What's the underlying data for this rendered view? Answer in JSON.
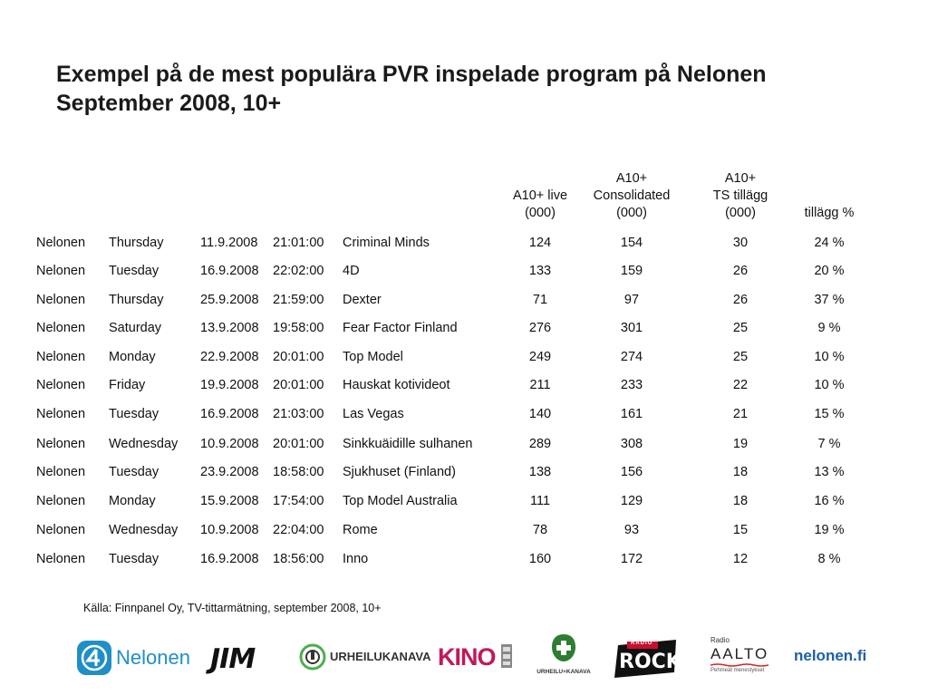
{
  "title": {
    "line1": "Exempel på de mest populära PVR inspelade program på Nelonen",
    "line2": "September 2008, 10+"
  },
  "headers": [
    {
      "lines": [
        "A10+ live",
        "(000)"
      ]
    },
    {
      "lines": [
        "A10+",
        "Consolidated",
        "(000)"
      ]
    },
    {
      "lines": [
        "A10+",
        "TS tillägg",
        "(000)"
      ]
    },
    {
      "lines": [
        "tillägg %"
      ]
    }
  ],
  "rows": [
    {
      "channel": "Nelonen",
      "day": "Thursday",
      "date": "11.9.2008",
      "time": "21:01:00",
      "program": "Criminal Minds",
      "live": "124",
      "consolidated": "154",
      "ts": "30",
      "pct": "24 %"
    },
    {
      "channel": "Nelonen",
      "day": "Tuesday",
      "date": "16.9.2008",
      "time": "22:02:00",
      "program": "4D",
      "live": "133",
      "consolidated": "159",
      "ts": "26",
      "pct": "20 %"
    },
    {
      "channel": "Nelonen",
      "day": "Thursday",
      "date": "25.9.2008",
      "time": "21:59:00",
      "program": "Dexter",
      "live": "71",
      "consolidated": "97",
      "ts": "26",
      "pct": "37 %"
    },
    {
      "channel": "Nelonen",
      "day": "Saturday",
      "date": "13.9.2008",
      "time": "19:58:00",
      "program": "Fear Factor Finland",
      "live": "276",
      "consolidated": "301",
      "ts": "25",
      "pct": "9 %"
    },
    {
      "channel": "Nelonen",
      "day": "Monday",
      "date": "22.9.2008",
      "time": "20:01:00",
      "program": "Top Model",
      "live": "249",
      "consolidated": "274",
      "ts": "25",
      "pct": "10 %"
    },
    {
      "channel": "Nelonen",
      "day": "Friday",
      "date": "19.9.2008",
      "time": "20:01:00",
      "program": "Hauskat kotivideot",
      "live": "211",
      "consolidated": "233",
      "ts": "22",
      "pct": "10 %"
    },
    {
      "channel": "Nelonen",
      "day": "Tuesday",
      "date": "16.9.2008",
      "time": "21:03:00",
      "program": "Las Vegas",
      "live": "140",
      "consolidated": "161",
      "ts": "21",
      "pct": "15 %"
    },
    {
      "channel": "Nelonen",
      "day": "Wednesday",
      "date": "10.9.2008",
      "time": "20:01:00",
      "program": "Sinkkuäidille sulhanen",
      "live": "289",
      "consolidated": "308",
      "ts": "19",
      "pct": "7 %"
    },
    {
      "channel": "Nelonen",
      "day": "Tuesday",
      "date": "23.9.2008",
      "time": "18:58:00",
      "program": "Sjukhuset (Finland)",
      "live": "138",
      "consolidated": "156",
      "ts": "18",
      "pct": "13 %"
    },
    {
      "channel": "Nelonen",
      "day": "Monday",
      "date": "15.9.2008",
      "time": "17:54:00",
      "program": "Top Model Australia",
      "live": "111",
      "consolidated": "129",
      "ts": "18",
      "pct": "16 %"
    },
    {
      "channel": "Nelonen",
      "day": "Wednesday",
      "date": "10.9.2008",
      "time": "22:04:00",
      "program": "Rome",
      "live": "78",
      "consolidated": "93",
      "ts": "15",
      "pct": "19 %"
    },
    {
      "channel": "Nelonen",
      "day": "Tuesday",
      "date": "16.9.2008",
      "time": "18:56:00",
      "program": "Inno",
      "live": "160",
      "consolidated": "172",
      "ts": "12",
      "pct": "8 %"
    }
  ],
  "source": "Källa: Finnpanel Oy, TV-tittarmätning, september 2008, 10+",
  "logos": {
    "nelonen": "Nelonen",
    "jim": "JIM",
    "urheilukanava": "URHEILUKANAVA",
    "kino": "KINO",
    "urheilu_plus": "URHEILU+KANAVA",
    "rock": "ROCK",
    "rock_top": "RADIO",
    "aalto_top": "Radio",
    "aalto": "AALTO",
    "aalto_sub": "Pehmeät menestykset",
    "nelonen_fi": "nelonen.fi"
  },
  "colors": {
    "nelonen_blue": "#1f8fc7",
    "text": "#111111",
    "kino_pink": "#c2185b",
    "urheilu_green": "#4caf50",
    "rock_red": "#c8102e",
    "aalto_red": "#d3232a"
  }
}
